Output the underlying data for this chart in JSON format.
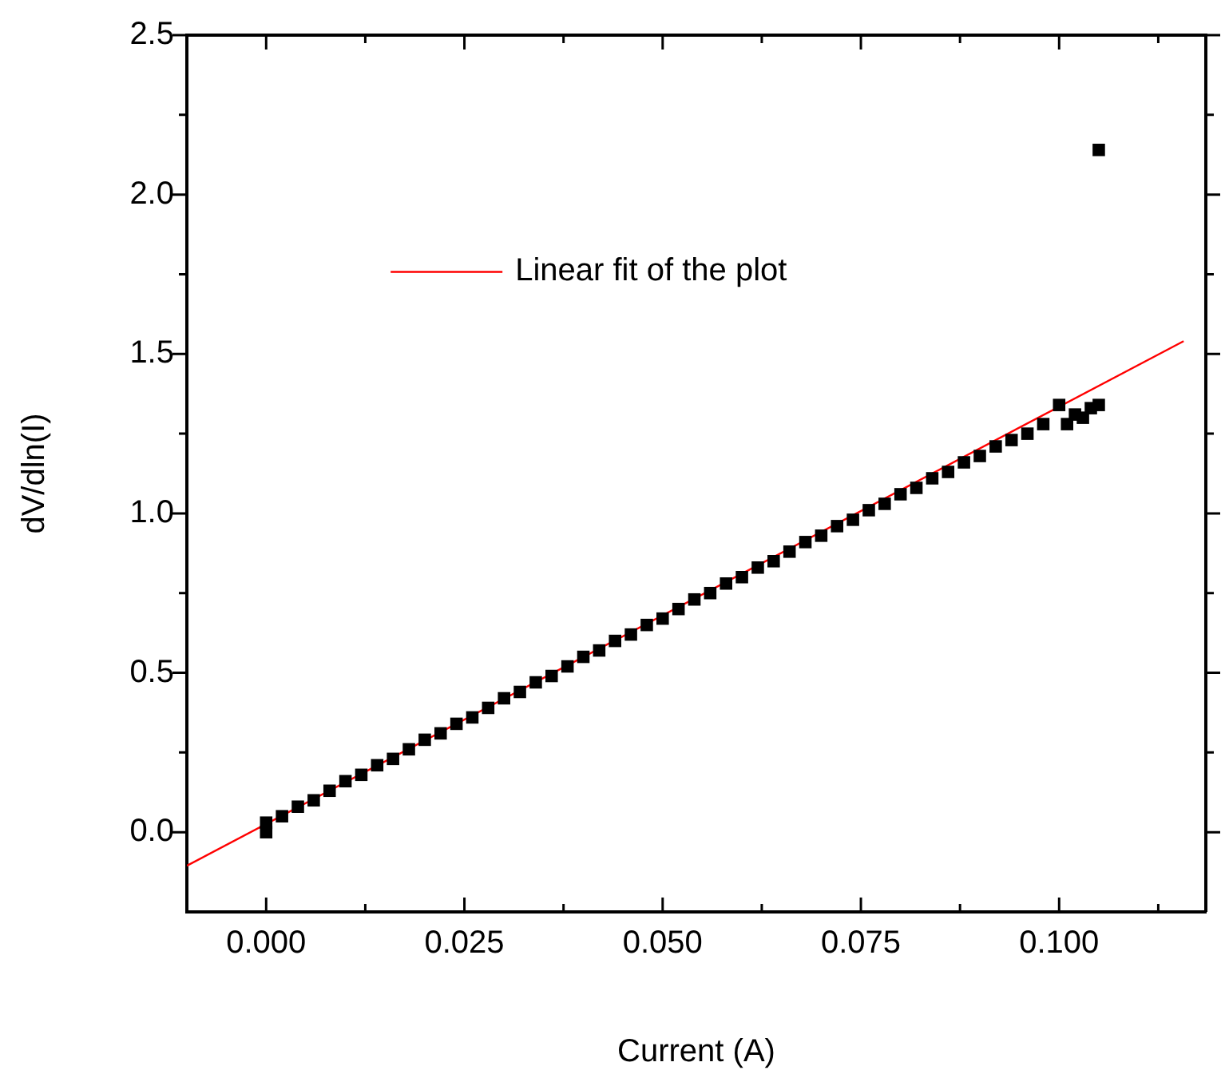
{
  "chart_data": {
    "type": "scatter",
    "xlabel": "Current (A)",
    "ylabel": "dV/dln(I)",
    "legend": "top left",
    "grid": false,
    "xlim": [
      -0.01,
      0.1185
    ],
    "ylim": [
      -0.25,
      2.5
    ],
    "xticks": [
      {
        "value": 0,
        "label": "0.000"
      },
      {
        "value": 0.0125,
        "label": null
      },
      {
        "value": 0.025,
        "label": "0.025"
      },
      {
        "value": 0.0375,
        "label": null
      },
      {
        "value": 0.05,
        "label": "0.050"
      },
      {
        "value": 0.0625,
        "label": null
      },
      {
        "value": 0.075,
        "label": "0.075"
      },
      {
        "value": 0.0875,
        "label": null
      },
      {
        "value": 0.1,
        "label": "0.100"
      },
      {
        "value": 0.1125,
        "label": null
      }
    ],
    "yticks": [
      {
        "value": 0,
        "label": "0.0"
      },
      {
        "value": 0.25,
        "label": null
      },
      {
        "value": 0.5,
        "label": "0.5"
      },
      {
        "value": 0.75,
        "label": null
      },
      {
        "value": 1,
        "label": "1.0"
      },
      {
        "value": 1.25,
        "label": null
      },
      {
        "value": 1.5,
        "label": "1.5"
      },
      {
        "value": 1.75,
        "label": null
      },
      {
        "value": 2,
        "label": "2.0"
      },
      {
        "value": 2.25,
        "label": null
      },
      {
        "value": 2.5,
        "label": "2.5"
      }
    ],
    "series": [
      {
        "type": "scatter",
        "marker": "square",
        "color": "#000000",
        "x": [
          0,
          0,
          0.002,
          0.004,
          0.006,
          0.008,
          0.01,
          0.012,
          0.014,
          0.016,
          0.018,
          0.02,
          0.022,
          0.024,
          0.026,
          0.028,
          0.03,
          0.032,
          0.034,
          0.036,
          0.038,
          0.04,
          0.042,
          0.044,
          0.046,
          0.048,
          0.05,
          0.052,
          0.054,
          0.056,
          0.058,
          0.06,
          0.062,
          0.064,
          0.066,
          0.068,
          0.07,
          0.072,
          0.074,
          0.076,
          0.078,
          0.08,
          0.082,
          0.084,
          0.086,
          0.088,
          0.09,
          0.092,
          0.094,
          0.096,
          0.098,
          0.1,
          0.101,
          0.102,
          0.103,
          0.104,
          0.105,
          0.105
        ],
        "values": [
          0,
          0.03,
          0.05,
          0.08,
          0.1,
          0.13,
          0.16,
          0.18,
          0.21,
          0.23,
          0.26,
          0.29,
          0.31,
          0.34,
          0.36,
          0.39,
          0.42,
          0.44,
          0.47,
          0.49,
          0.52,
          0.55,
          0.57,
          0.6,
          0.62,
          0.65,
          0.67,
          0.7,
          0.73,
          0.75,
          0.78,
          0.8,
          0.83,
          0.85,
          0.88,
          0.91,
          0.93,
          0.96,
          0.98,
          1.01,
          1.03,
          1.06,
          1.08,
          1.11,
          1.13,
          1.16,
          1.18,
          1.21,
          1.23,
          1.25,
          1.28,
          1.34,
          1.28,
          1.31,
          1.3,
          1.33,
          1.34,
          2.14
        ]
      },
      {
        "type": "line",
        "name": "Linear fit of the plot",
        "color": "#ff0000",
        "marker": "none",
        "line_style": "solid",
        "x": [
          -0.01,
          0.1157
        ],
        "values": [
          -0.105,
          1.54
        ]
      }
    ]
  }
}
